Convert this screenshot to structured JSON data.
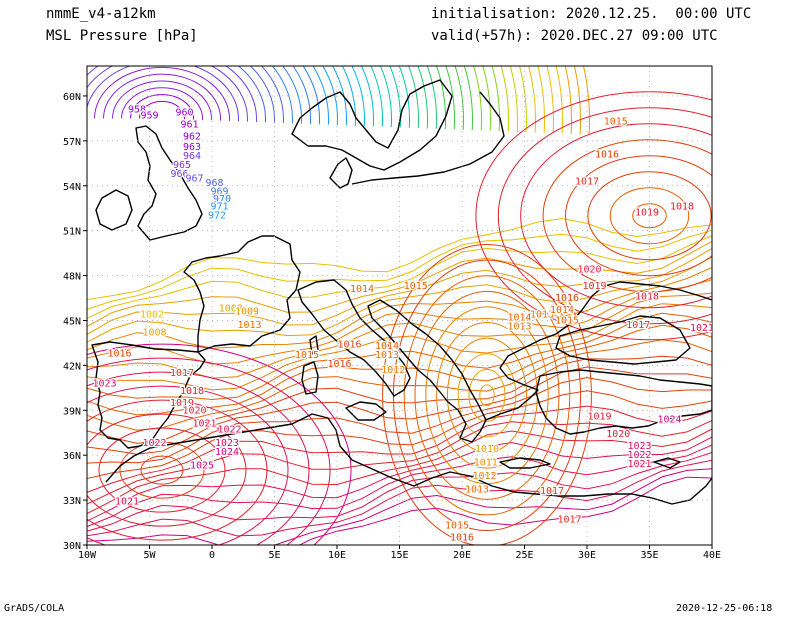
{
  "header": {
    "model": "nmmE_v4-a12km",
    "field": "MSL Pressure [hPa]",
    "init": "initialisation: 2020.12.25.  00:00 UTC",
    "valid": "valid(+57h): 2020.DEC.27 09:00 UTC"
  },
  "footer": {
    "credit": "GrADS/COLA",
    "timestamp": "2020-12-25-06:18"
  },
  "map": {
    "lon_range": [
      -10,
      40
    ],
    "lat_range": [
      30,
      62
    ],
    "x_ticks": [
      "10W",
      "5W",
      "0",
      "5E",
      "10E",
      "15E",
      "20E",
      "25E",
      "30E",
      "35E",
      "40E"
    ],
    "y_ticks": [
      "30N",
      "33N",
      "36N",
      "39N",
      "42N",
      "45N",
      "48N",
      "51N",
      "54N",
      "57N",
      "60N"
    ],
    "grid": true,
    "colors": {
      "low": "#9400d3",
      "mid_low": "#0090ff",
      "mid": "#20c040",
      "mid_high": "#e0c000",
      "high": "#e86000",
      "very_high": "#d00080",
      "coast": "#000000",
      "grid": "#a0a0a0"
    }
  },
  "isobar_labels": [
    {
      "text": "958",
      "lon": -6.0,
      "lat": 58.9,
      "c": "#9400d3"
    },
    {
      "text": "959",
      "lon": -5.0,
      "lat": 58.5,
      "c": "#9400d3"
    },
    {
      "text": "960",
      "lon": -2.2,
      "lat": 58.7,
      "c": "#9400d3"
    },
    {
      "text": "961",
      "lon": -1.8,
      "lat": 57.9,
      "c": "#9400d3"
    },
    {
      "text": "962",
      "lon": -1.6,
      "lat": 57.1,
      "c": "#9400d3"
    },
    {
      "text": "963",
      "lon": -1.6,
      "lat": 56.4,
      "c": "#9400d3"
    },
    {
      "text": "964",
      "lon": -1.6,
      "lat": 55.8,
      "c": "#8030e0"
    },
    {
      "text": "965",
      "lon": -2.4,
      "lat": 55.2,
      "c": "#8030e0"
    },
    {
      "text": "966",
      "lon": -2.6,
      "lat": 54.6,
      "c": "#7040e0"
    },
    {
      "text": "967",
      "lon": -1.4,
      "lat": 54.3,
      "c": "#6050e8"
    },
    {
      "text": "968",
      "lon": 0.2,
      "lat": 54.0,
      "c": "#5060e8"
    },
    {
      "text": "969",
      "lon": 0.6,
      "lat": 53.4,
      "c": "#4070f0"
    },
    {
      "text": "970",
      "lon": 0.8,
      "lat": 52.9,
      "c": "#3080f0"
    },
    {
      "text": "971",
      "lon": 0.6,
      "lat": 52.4,
      "c": "#3090f0"
    },
    {
      "text": "972",
      "lon": 0.4,
      "lat": 51.8,
      "c": "#20a0f0"
    },
    {
      "text": "1002",
      "lon": -4.8,
      "lat": 45.2,
      "c": "#e8c000"
    },
    {
      "text": "1008",
      "lon": -4.6,
      "lat": 44.0,
      "c": "#e8a000"
    },
    {
      "text": "1016",
      "lon": -7.4,
      "lat": 42.6,
      "c": "#e04000"
    },
    {
      "text": "1017",
      "lon": -2.4,
      "lat": 41.3,
      "c": "#e03020"
    },
    {
      "text": "1018",
      "lon": -1.6,
      "lat": 40.1,
      "c": "#e02030"
    },
    {
      "text": "1019",
      "lon": -2.4,
      "lat": 39.3,
      "c": "#e02030"
    },
    {
      "text": "1020",
      "lon": -1.4,
      "lat": 38.8,
      "c": "#e02040"
    },
    {
      "text": "1021",
      "lon": -0.6,
      "lat": 37.9,
      "c": "#e01050"
    },
    {
      "text": "1022",
      "lon": 1.4,
      "lat": 37.5,
      "c": "#e01060"
    },
    {
      "text": "1022",
      "lon": -4.6,
      "lat": 36.6,
      "c": "#e01060"
    },
    {
      "text": "1023",
      "lon": -8.6,
      "lat": 40.6,
      "c": "#d01070"
    },
    {
      "text": "1023",
      "lon": 1.2,
      "lat": 36.6,
      "c": "#d01070"
    },
    {
      "text": "1024",
      "lon": 1.2,
      "lat": 36.0,
      "c": "#d00080"
    },
    {
      "text": "1025",
      "lon": -0.8,
      "lat": 35.1,
      "c": "#d00080"
    },
    {
      "text": "1021",
      "lon": -6.8,
      "lat": 32.7,
      "c": "#e01050"
    },
    {
      "text": "1008",
      "lon": 1.5,
      "lat": 45.6,
      "c": "#e8a000"
    },
    {
      "text": "1009",
      "lon": 2.8,
      "lat": 45.4,
      "c": "#e89000"
    },
    {
      "text": "1013",
      "lon": 3.0,
      "lat": 44.5,
      "c": "#e87000"
    },
    {
      "text": "1014",
      "lon": 12.0,
      "lat": 46.9,
      "c": "#e86000"
    },
    {
      "text": "1015",
      "lon": 16.3,
      "lat": 47.1,
      "c": "#e86000"
    },
    {
      "text": "1015",
      "lon": 7.6,
      "lat": 42.5,
      "c": "#e86000"
    },
    {
      "text": "1016",
      "lon": 10.2,
      "lat": 41.9,
      "c": "#e04000"
    },
    {
      "text": "1016",
      "lon": 11.0,
      "lat": 43.2,
      "c": "#e04000"
    },
    {
      "text": "1013",
      "lon": 14.0,
      "lat": 42.5,
      "c": "#e87000"
    },
    {
      "text": "1012",
      "lon": 14.5,
      "lat": 41.5,
      "c": "#e88000"
    },
    {
      "text": "1014",
      "lon": 14.0,
      "lat": 43.1,
      "c": "#e86000"
    },
    {
      "text": "1010",
      "lon": 22.0,
      "lat": 36.2,
      "c": "#e8a000"
    },
    {
      "text": "1011",
      "lon": 21.9,
      "lat": 35.3,
      "c": "#e89000"
    },
    {
      "text": "1012",
      "lon": 21.8,
      "lat": 34.4,
      "c": "#e88000"
    },
    {
      "text": "1013",
      "lon": 21.2,
      "lat": 33.5,
      "c": "#e87000"
    },
    {
      "text": "1015",
      "lon": 19.6,
      "lat": 31.1,
      "c": "#e86000"
    },
    {
      "text": "1016",
      "lon": 20.0,
      "lat": 30.3,
      "c": "#e04000"
    },
    {
      "text": "1017",
      "lon": 27.2,
      "lat": 33.4,
      "c": "#e03020"
    },
    {
      "text": "1017",
      "lon": 28.6,
      "lat": 31.5,
      "c": "#e03020"
    },
    {
      "text": "1014",
      "lon": 24.6,
      "lat": 45.0,
      "c": "#e86000"
    },
    {
      "text": "1013",
      "lon": 24.6,
      "lat": 44.4,
      "c": "#e87000"
    },
    {
      "text": "1013",
      "lon": 26.4,
      "lat": 45.2,
      "c": "#e87000"
    },
    {
      "text": "1014",
      "lon": 28.0,
      "lat": 45.5,
      "c": "#e86000"
    },
    {
      "text": "1015",
      "lon": 28.4,
      "lat": 44.8,
      "c": "#e86000"
    },
    {
      "text": "1016",
      "lon": 28.4,
      "lat": 46.3,
      "c": "#e04000"
    },
    {
      "text": "1017",
      "lon": 34.1,
      "lat": 44.5,
      "c": "#e03020"
    },
    {
      "text": "1018",
      "lon": 34.8,
      "lat": 46.4,
      "c": "#e02030"
    },
    {
      "text": "1019",
      "lon": 30.6,
      "lat": 47.1,
      "c": "#e02030"
    },
    {
      "text": "1020",
      "lon": 30.2,
      "lat": 48.2,
      "c": "#e02040"
    },
    {
      "text": "1021",
      "lon": 39.2,
      "lat": 44.3,
      "c": "#e01050"
    },
    {
      "text": "1015",
      "lon": 32.3,
      "lat": 58.1,
      "c": "#e86000"
    },
    {
      "text": "1016",
      "lon": 31.6,
      "lat": 55.9,
      "c": "#e04000"
    },
    {
      "text": "1017",
      "lon": 30.0,
      "lat": 54.1,
      "c": "#e03020"
    },
    {
      "text": "1018",
      "lon": 37.6,
      "lat": 52.4,
      "c": "#e02030"
    },
    {
      "text": "1019",
      "lon": 34.8,
      "lat": 52.0,
      "c": "#e02030"
    },
    {
      "text": "1019",
      "lon": 31.0,
      "lat": 38.4,
      "c": "#e02030"
    },
    {
      "text": "1020",
      "lon": 32.5,
      "lat": 37.2,
      "c": "#e02040"
    },
    {
      "text": "1021",
      "lon": 34.2,
      "lat": 35.2,
      "c": "#e01050"
    },
    {
      "text": "1022",
      "lon": 34.2,
      "lat": 35.8,
      "c": "#e01060"
    },
    {
      "text": "1023",
      "lon": 34.2,
      "lat": 36.4,
      "c": "#d01070"
    },
    {
      "text": "1024",
      "lon": 36.6,
      "lat": 38.2,
      "c": "#d00080"
    }
  ]
}
